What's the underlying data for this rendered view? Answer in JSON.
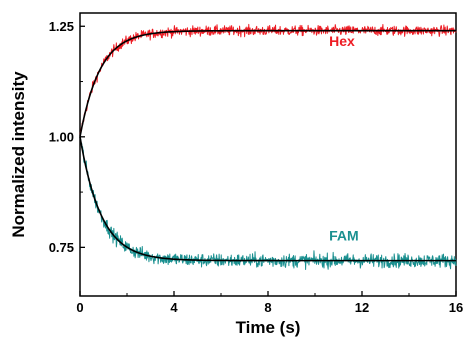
{
  "chart_data": {
    "type": "line",
    "title": "",
    "xlabel": "Time (s)",
    "ylabel": "Normalized intensity",
    "xlim": [
      0,
      16
    ],
    "ylim": [
      0.64,
      1.28
    ],
    "x_ticks": [
      0,
      4,
      8,
      12,
      16
    ],
    "x_tick_labels": [
      "0",
      "4",
      "8",
      "12",
      "16"
    ],
    "y_ticks": [
      0.75,
      1.0,
      1.25
    ],
    "y_tick_labels": [
      "0.75",
      "1.00",
      "1.25"
    ],
    "grid": false,
    "legend": "none",
    "series": [
      {
        "name": "Hex",
        "kind": "noisy-data",
        "color": "#ee1c24",
        "start": 1.0,
        "plateau": 1.24,
        "tau": 0.85,
        "noise": 0.008
      },
      {
        "name": "",
        "kind": "fit",
        "color": "#000000",
        "start": 1.0,
        "plateau": 1.24,
        "tau": 0.85
      },
      {
        "name": "FAM",
        "kind": "noisy-data",
        "color": "#1a9090",
        "start": 1.0,
        "plateau": 0.72,
        "tau": 0.9,
        "noise": 0.011
      },
      {
        "name": "",
        "kind": "fit",
        "color": "#000000",
        "start": 1.0,
        "plateau": 0.72,
        "tau": 0.9
      }
    ],
    "annotations": [
      {
        "text": "Hex",
        "x": 10.6,
        "y": 1.205,
        "color": "#ee1c24"
      },
      {
        "text": "FAM",
        "x": 10.6,
        "y": 0.765,
        "color": "#1a9090"
      }
    ]
  }
}
